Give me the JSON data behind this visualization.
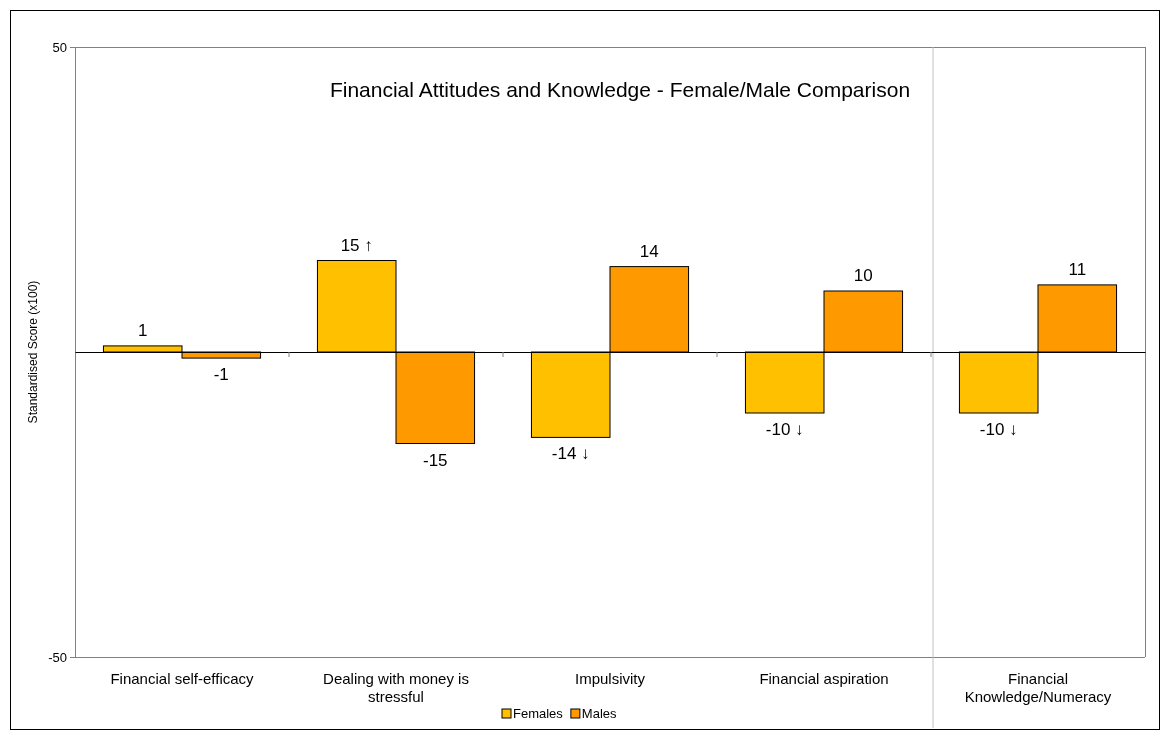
{
  "chart_data": {
    "type": "bar",
    "title": "Financial Attitudes and Knowledge - Female/Male Comparison",
    "ylabel": "Standardised Score (x100)",
    "categories": [
      "Financial self-efficacy",
      "Dealing with money is stressful",
      "Impulsivity",
      "Financial aspiration",
      "Financial Knowledge/Numeracy"
    ],
    "series": [
      {
        "name": "Females",
        "color": "#ffc000",
        "values": [
          1,
          15,
          -14,
          -10,
          -10
        ],
        "value_labels": [
          "1",
          "15 ↑",
          "-14 ↓",
          "-10 ↓",
          "-10 ↓"
        ]
      },
      {
        "name": "Males",
        "color": "#ff9900",
        "values": [
          -1,
          -15,
          14,
          10,
          11
        ],
        "value_labels": [
          "-1",
          "-15",
          "14",
          "10",
          "11"
        ]
      }
    ],
    "ylim": [
      -50,
      50
    ],
    "yticks": [
      -50,
      50
    ],
    "grid": false,
    "legend": "bottom"
  }
}
